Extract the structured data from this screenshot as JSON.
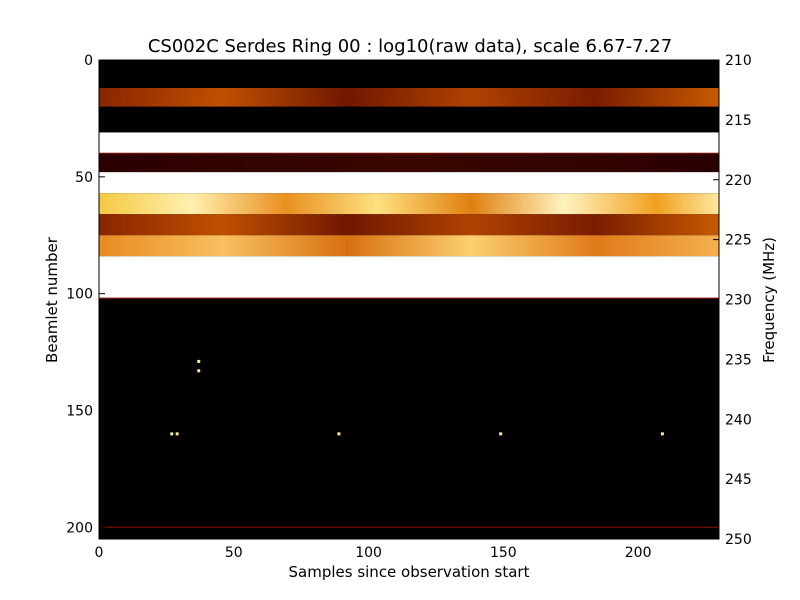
{
  "chart_data": {
    "type": "heatmap",
    "title": "CS002C Serdes Ring 00 : log10(raw data), scale 6.67-7.27",
    "xlabel": "Samples since observation start",
    "ylabel": "Beamlet number",
    "y2label": "Frequency (MHz)",
    "xlim": [
      0,
      230
    ],
    "ylim": [
      205,
      0
    ],
    "y2lim": [
      250,
      210
    ],
    "x_ticks": [
      0,
      50,
      100,
      150,
      200
    ],
    "y_ticks": [
      0,
      50,
      100,
      150,
      200
    ],
    "y2_ticks": [
      210,
      215,
      220,
      225,
      230,
      235,
      240,
      245,
      250
    ],
    "colormap": "afmhot",
    "value_range": [
      6.67,
      7.27
    ],
    "grid": false,
    "bands": [
      {
        "beamlet_start": 4,
        "beamlet_end": 12,
        "level": 0.02
      },
      {
        "beamlet_start": 12,
        "beamlet_end": 20,
        "level": 0.35
      },
      {
        "beamlet_start": 20,
        "beamlet_end": 31,
        "level": 0.02
      },
      {
        "beamlet_start": 31,
        "beamlet_end": 40,
        "level": 1.0
      },
      {
        "beamlet_start": 40,
        "beamlet_end": 48,
        "level": 0.12
      },
      {
        "beamlet_start": 48,
        "beamlet_end": 57,
        "level": 1.0
      },
      {
        "beamlet_start": 57,
        "beamlet_end": 66,
        "level": 0.8
      },
      {
        "beamlet_start": 66,
        "beamlet_end": 75,
        "level": 0.3
      },
      {
        "beamlet_start": 75,
        "beamlet_end": 84,
        "level": 0.65
      },
      {
        "beamlet_start": 84,
        "beamlet_end": 102,
        "level": 1.0
      },
      {
        "beamlet_start": 102,
        "beamlet_end": 205,
        "level": 0.0
      }
    ],
    "hot_pixels": [
      {
        "sample": 37,
        "beamlet": 129
      },
      {
        "sample": 37,
        "beamlet": 133
      },
      {
        "sample": 27,
        "beamlet": 160
      },
      {
        "sample": 29,
        "beamlet": 160
      },
      {
        "sample": 89,
        "beamlet": 160
      },
      {
        "sample": 149,
        "beamlet": 160
      },
      {
        "sample": 209,
        "beamlet": 160
      }
    ]
  }
}
